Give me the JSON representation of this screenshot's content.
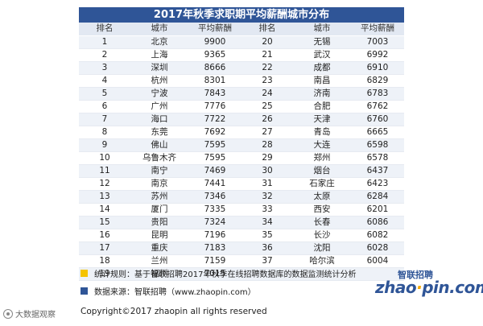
{
  "title": "2017年秋季求职期平均薪酬城市分布",
  "headers": [
    "排名",
    "城市",
    "平均薪酬",
    "排名",
    "城市",
    "平均薪酬"
  ],
  "rows": [
    [
      "1",
      "北京",
      "9900",
      "20",
      "无锡",
      "7003"
    ],
    [
      "2",
      "上海",
      "9365",
      "21",
      "武汉",
      "6992"
    ],
    [
      "3",
      "深圳",
      "8666",
      "22",
      "成都",
      "6910"
    ],
    [
      "4",
      "杭州",
      "8301",
      "23",
      "南昌",
      "6829"
    ],
    [
      "5",
      "宁波",
      "7843",
      "24",
      "济南",
      "6783"
    ],
    [
      "6",
      "广州",
      "7776",
      "25",
      "合肥",
      "6762"
    ],
    [
      "7",
      "海口",
      "7722",
      "26",
      "天津",
      "6760"
    ],
    [
      "8",
      "东莞",
      "7692",
      "27",
      "青岛",
      "6665"
    ],
    [
      "9",
      "佛山",
      "7595",
      "28",
      "大连",
      "6598"
    ],
    [
      "10",
      "乌鲁木齐",
      "7595",
      "29",
      "郑州",
      "6578"
    ],
    [
      "11",
      "南宁",
      "7469",
      "30",
      "烟台",
      "6437"
    ],
    [
      "12",
      "南京",
      "7441",
      "31",
      "石家庄",
      "6423"
    ],
    [
      "13",
      "苏州",
      "7346",
      "32",
      "太原",
      "6284"
    ],
    [
      "14",
      "厦门",
      "7335",
      "33",
      "西安",
      "6201"
    ],
    [
      "15",
      "贵阳",
      "7324",
      "34",
      "长春",
      "6086"
    ],
    [
      "16",
      "昆明",
      "7196",
      "35",
      "长沙",
      "6082"
    ],
    [
      "17",
      "重庆",
      "7183",
      "36",
      "沈阳",
      "6028"
    ],
    [
      "18",
      "兰州",
      "7159",
      "37",
      "哈尔滨",
      "6004"
    ],
    [
      "19",
      "福州",
      "7015",
      "",
      "",
      ""
    ]
  ],
  "notes": {
    "rule": "统计规则：基于智联招聘2017年秋季在线招聘数据库的数据监测统计分析",
    "source": "数据来源：智联招聘（www.zhaopin.com）"
  },
  "logo": {
    "top": "智联招聘",
    "main_left": "zhao",
    "main_dot": "·",
    "main_right": "pin.com"
  },
  "watermark": "大数据观察",
  "copyright": "Copyright©2017 zhaopin all rights reserved",
  "colors": {
    "header_blue": "#2f5597",
    "accent_yellow": "#f5c400"
  }
}
